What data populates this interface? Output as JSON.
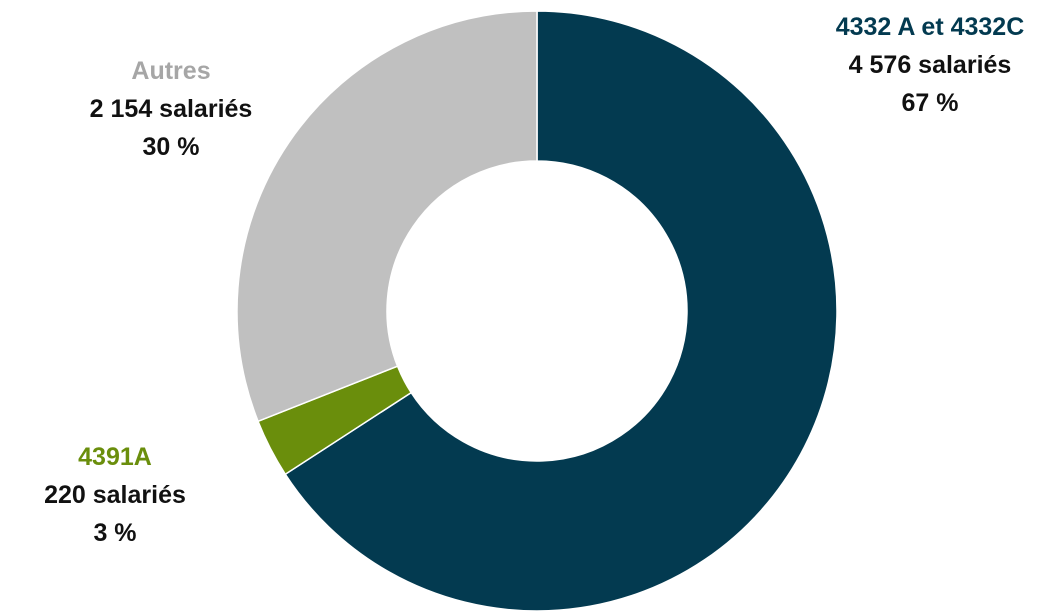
{
  "chart_data": {
    "type": "pie",
    "donut": true,
    "slices": [
      {
        "label": "4332 A et 4332C",
        "count_label": "4 576 salariés",
        "pct_label": "67 %",
        "value": 4576,
        "color": "#033a50"
      },
      {
        "label": "4391A",
        "count_label": "220 salariés",
        "pct_label": "3 %",
        "value": 220,
        "color": "#6a8e0c"
      },
      {
        "label": "Autres",
        "count_label": "2 154 salariés",
        "pct_label": "30 %",
        "value": 2154,
        "color": "#c0c0c0"
      }
    ],
    "start_angle_deg": 0,
    "direction": "clockwise"
  }
}
